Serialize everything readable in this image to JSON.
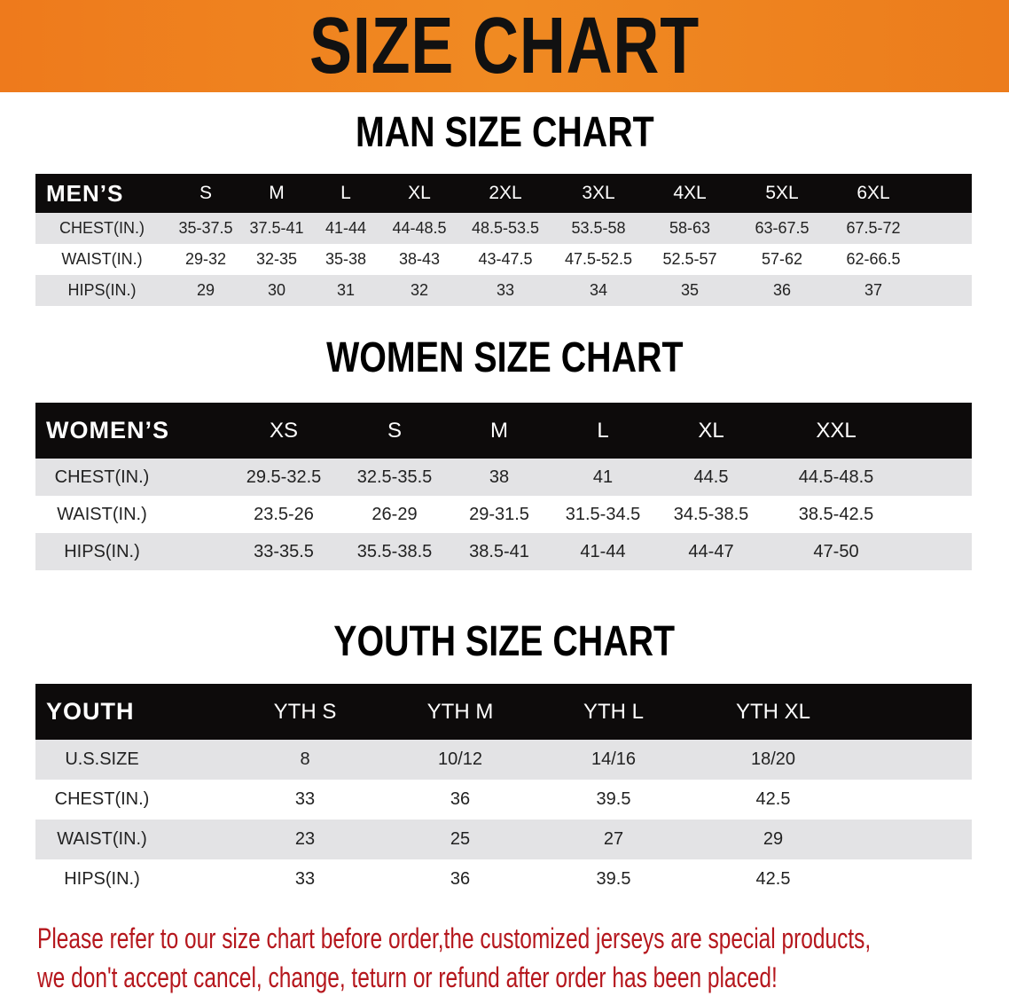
{
  "banner_title": "SIZE CHART",
  "men": {
    "title": "MAN SIZE CHART",
    "header": "MEN’S",
    "sizes": [
      "S",
      "M",
      "L",
      "XL",
      "2XL",
      "3XL",
      "4XL",
      "5XL",
      "6XL"
    ],
    "rows": [
      {
        "label": "CHEST(IN.)",
        "values": [
          "35-37.5",
          "37.5-41",
          "41-44",
          "44-48.5",
          "48.5-53.5",
          "53.5-58",
          "58-63",
          "63-67.5",
          "67.5-72"
        ]
      },
      {
        "label": "WAIST(IN.)",
        "values": [
          "29-32",
          "32-35",
          "35-38",
          "38-43",
          "43-47.5",
          "47.5-52.5",
          "52.5-57",
          "57-62",
          "62-66.5"
        ]
      },
      {
        "label": "HIPS(IN.)",
        "values": [
          "29",
          "30",
          "31",
          "32",
          "33",
          "34",
          "35",
          "36",
          "37"
        ]
      }
    ]
  },
  "women": {
    "title": "WOMEN SIZE CHART",
    "header": "WOMEN’S",
    "sizes": [
      "XS",
      "S",
      "M",
      "L",
      "XL",
      "XXL"
    ],
    "rows": [
      {
        "label": "CHEST(IN.)",
        "values": [
          "29.5-32.5",
          "32.5-35.5",
          "38",
          "41",
          "44.5",
          "44.5-48.5"
        ]
      },
      {
        "label": "WAIST(IN.)",
        "values": [
          "23.5-26",
          "26-29",
          "29-31.5",
          "31.5-34.5",
          "34.5-38.5",
          "38.5-42.5"
        ]
      },
      {
        "label": "HIPS(IN.)",
        "values": [
          "33-35.5",
          "35.5-38.5",
          "38.5-41",
          "41-44",
          "44-47",
          "47-50"
        ]
      }
    ]
  },
  "youth": {
    "title": "YOUTH SIZE CHART",
    "header": "YOUTH",
    "sizes": [
      "YTH S",
      "YTH M",
      "YTH L",
      "YTH XL"
    ],
    "rows": [
      {
        "label": "U.S.SIZE",
        "values": [
          "8",
          "10/12",
          "14/16",
          "18/20"
        ]
      },
      {
        "label": "CHEST(IN.)",
        "values": [
          "33",
          "36",
          "39.5",
          "42.5"
        ]
      },
      {
        "label": "WAIST(IN.)",
        "values": [
          "23",
          "25",
          "27",
          "29"
        ]
      },
      {
        "label": "HIPS(IN.)",
        "values": [
          "33",
          "36",
          "39.5",
          "42.5"
        ]
      }
    ]
  },
  "note": {
    "line1": "Please refer to our size chart before order,the customized jerseys are special products,",
    "line2": "we don't accept cancel, change, teturn or refund after order has been placed!"
  },
  "colors": {
    "banner": "#ee7a1c",
    "header_row": "#0d0b0b",
    "stripe": "#e3e3e5",
    "note": "#b5171d"
  }
}
